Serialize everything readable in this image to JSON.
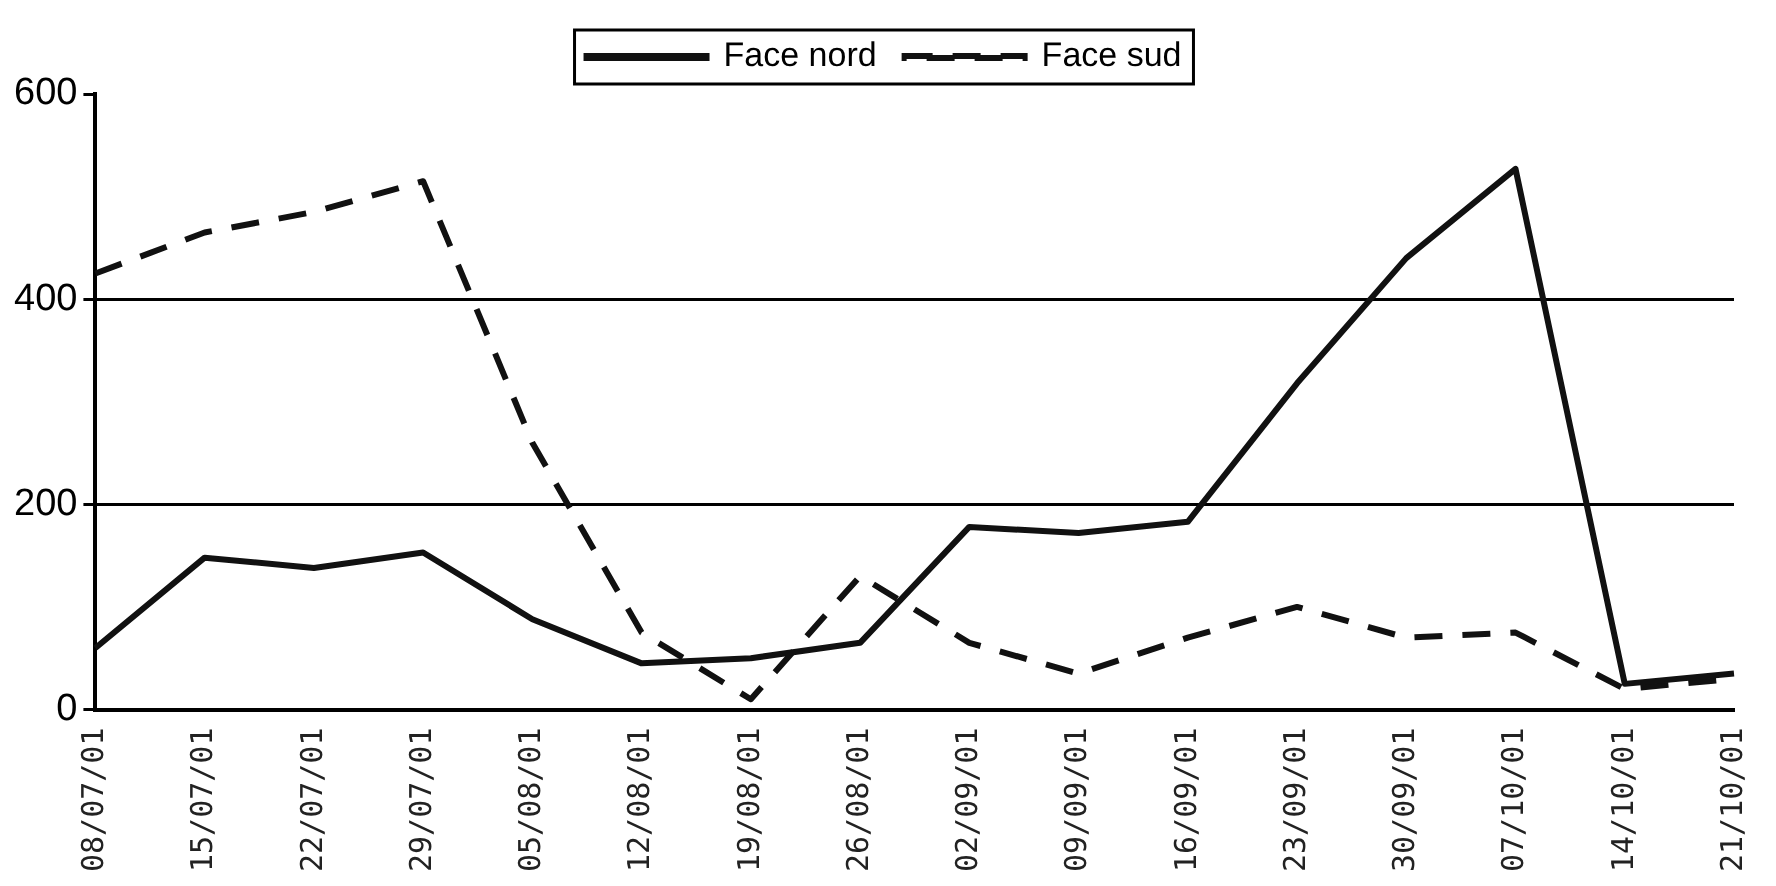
{
  "chart_data": {
    "type": "line",
    "categories": [
      "08/07/01",
      "15/07/01",
      "22/07/01",
      "29/07/01",
      "05/08/01",
      "12/08/01",
      "19/08/01",
      "26/08/01",
      "02/09/01",
      "09/09/01",
      "16/09/01",
      "23/09/01",
      "30/09/01",
      "07/10/01",
      "14/10/01",
      "21/10/01"
    ],
    "series": [
      {
        "name": "Face nord",
        "color": "#111111",
        "line_style": "solid",
        "values": [
          60,
          148,
          138,
          153,
          88,
          45,
          50,
          65,
          178,
          172,
          183,
          318,
          440,
          527,
          25,
          35
        ]
      },
      {
        "name": "Face sud",
        "color": "#111111",
        "line_style": "dashed",
        "values": [
          425,
          465,
          485,
          515,
          260,
          75,
          10,
          130,
          65,
          35,
          70,
          100,
          70,
          75,
          20,
          30
        ]
      }
    ],
    "ylim": [
      0,
      600
    ],
    "yticks": [
      0,
      200,
      400,
      600
    ],
    "grid": "y",
    "legend": "top",
    "marker": "none"
  }
}
